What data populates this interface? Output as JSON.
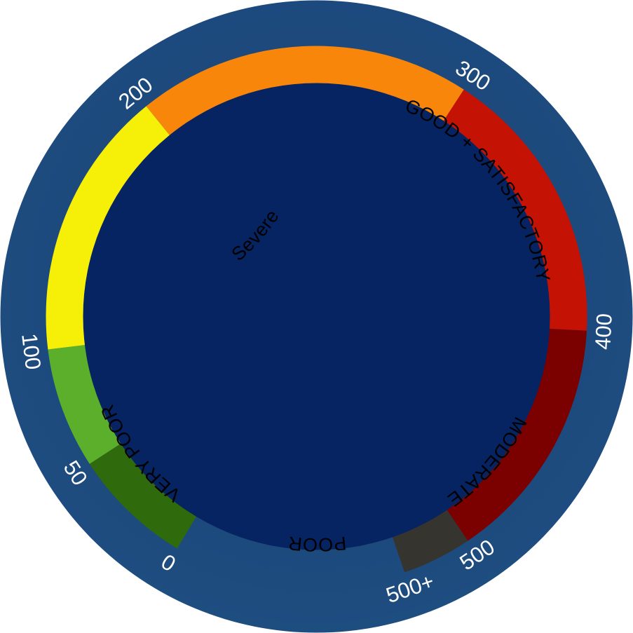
{
  "gauge": {
    "scale_min": 0,
    "scale_max_label": "500+",
    "bands": [
      {
        "name": "good",
        "from": 0,
        "to": 50,
        "color": "#2f6a0c"
      },
      {
        "name": "satisfactory",
        "from": 50,
        "to": 100,
        "color": "#5caf2a"
      },
      {
        "name": "moderate",
        "from": 100,
        "to": 200,
        "color": "#f6f009"
      },
      {
        "name": "poor",
        "from": 200,
        "to": 300,
        "color": "#f7860a"
      },
      {
        "name": "very-poor",
        "from": 300,
        "to": 400,
        "color": "#c41205"
      },
      {
        "name": "severe",
        "from": 400,
        "to": 500,
        "color": "#7b0101"
      },
      {
        "name": "beyond",
        "from": 500,
        "to": 550,
        "color": "#36342f"
      }
    ],
    "ticks": [
      "0",
      "50",
      "100",
      "200",
      "300",
      "400",
      "500",
      "500+"
    ],
    "band_labels": [
      {
        "id": "good-satisfactory",
        "text": "GOOD + SATISFACTORY"
      },
      {
        "id": "moderate",
        "text": "MODERATE"
      },
      {
        "id": "poor",
        "text": "POOR"
      },
      {
        "id": "very-poor",
        "text": "VERY POOR"
      },
      {
        "id": "severe",
        "text": "Severe"
      }
    ],
    "colors": {
      "outer_ring": "#1e4a7c",
      "inner_disc": "#062362",
      "tick_text": "#ffffff",
      "band_text": "#000000"
    }
  }
}
